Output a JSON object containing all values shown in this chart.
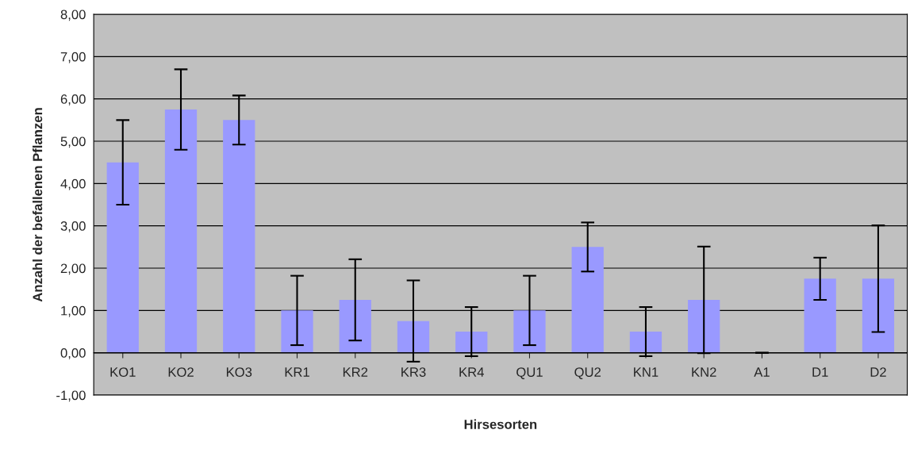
{
  "chart_data": {
    "type": "bar",
    "xlabel": "Hirsesorten",
    "ylabel": "Anzahl der befallenen Pflanzen",
    "categories": [
      "KO1",
      "KO2",
      "KO3",
      "KR1",
      "KR2",
      "KR3",
      "KR4",
      "QU1",
      "QU2",
      "KN1",
      "KN2",
      "A1",
      "D1",
      "D2"
    ],
    "values": [
      4.5,
      5.75,
      5.5,
      1.0,
      1.25,
      0.75,
      0.5,
      1.0,
      2.5,
      0.5,
      1.25,
      0,
      1.75,
      1.75
    ],
    "errors": [
      1.0,
      0.95,
      0.58,
      0.82,
      0.96,
      0.96,
      0.58,
      0.82,
      0.58,
      0.58,
      1.26,
      0,
      0.5,
      1.26
    ],
    "color": "#9999ff",
    "ylim": [
      -1,
      8
    ],
    "yticks": [
      {
        "value": -1,
        "label": "-1,00"
      },
      {
        "value": 0,
        "label": "0,00"
      },
      {
        "value": 1,
        "label": "1,00"
      },
      {
        "value": 2,
        "label": "2,00"
      },
      {
        "value": 3,
        "label": "3,00"
      },
      {
        "value": 4,
        "label": "4,00"
      },
      {
        "value": 5,
        "label": "5,00"
      },
      {
        "value": 6,
        "label": "6,00"
      },
      {
        "value": 7,
        "label": "7,00"
      },
      {
        "value": 8,
        "label": "8,00"
      }
    ],
    "grid": "y",
    "legend": false
  }
}
